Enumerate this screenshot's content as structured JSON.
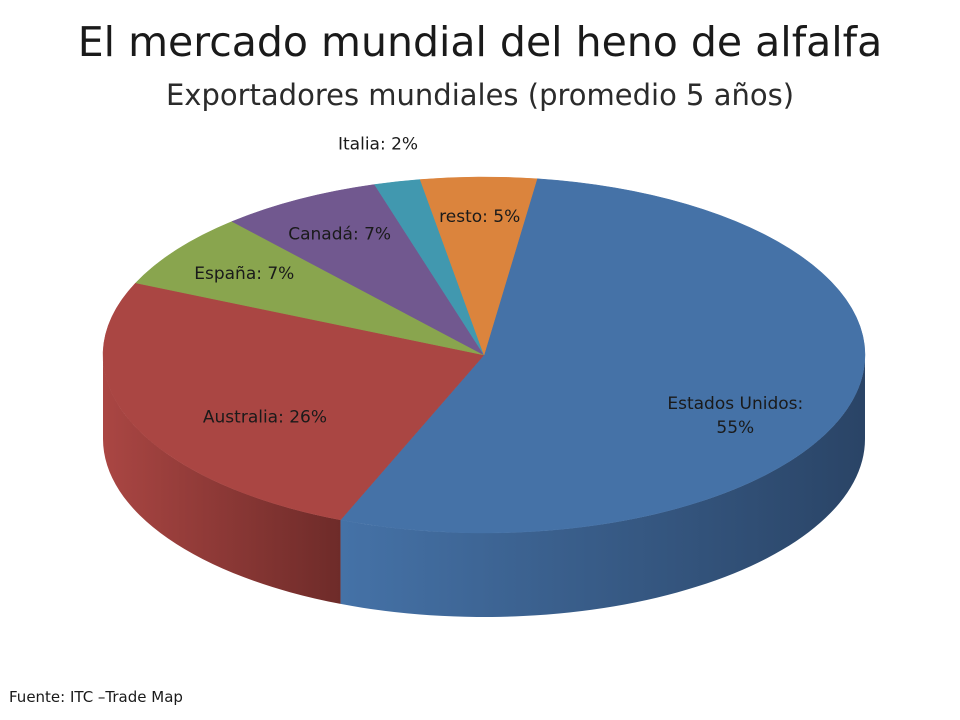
{
  "header": {
    "title": "El mercado mundial del heno de alfalfa",
    "subtitle": "Exportadores mundiales (promedio 5 años)"
  },
  "footer": {
    "source": "Fuente: ITC –Trade Map"
  },
  "chart_data": {
    "type": "pie",
    "style": "3d-exploded-perspective",
    "unit": "%",
    "slices": [
      {
        "name": "Estados Unidos",
        "value": 55,
        "label_lines": [
          "Estados Unidos:",
          "55%"
        ],
        "color": "#4572a7",
        "side_color": "#2a4466"
      },
      {
        "name": "Australia",
        "value": 26,
        "label_lines": [
          "Australia: 26%"
        ],
        "color": "#aa4643",
        "side_color": "#6e2b29"
      },
      {
        "name": "España",
        "value": 7,
        "label_lines": [
          "España: 7%"
        ],
        "color": "#89a54e",
        "side_color": "#5a6e31"
      },
      {
        "name": "Canadá",
        "value": 7,
        "label_lines": [
          "Canadá: 7%"
        ],
        "color": "#71588f",
        "side_color": "#47375b"
      },
      {
        "name": "Italia",
        "value": 2,
        "label_lines": [
          "Italia: 2%"
        ],
        "color": "#4198af",
        "side_color": "#285f6e"
      },
      {
        "name": "resto",
        "value": 5,
        "label_lines": [
          "resto: 5%"
        ],
        "color": "#db843d",
        "side_color": "#8c5426"
      }
    ]
  }
}
